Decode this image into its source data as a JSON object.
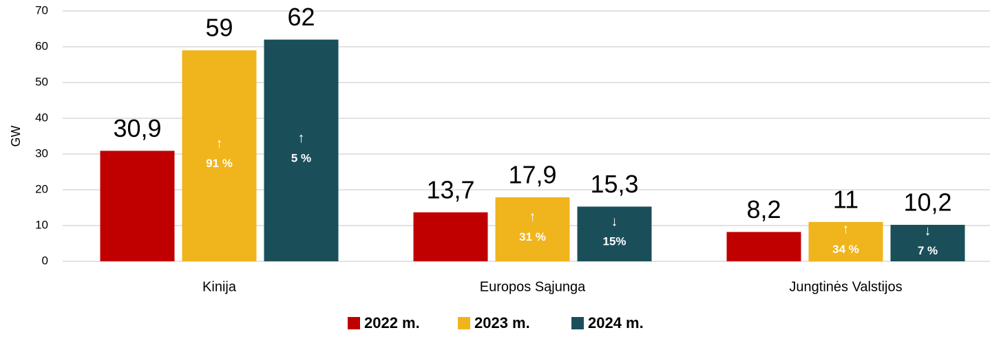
{
  "chart_data": {
    "type": "bar",
    "y_label": "GW",
    "categories": [
      "Kinija",
      "Europos Sąjunga",
      "Jungtinės Valstijos"
    ],
    "series": [
      {
        "name": "2022 m.",
        "color": "#c00000",
        "values": [
          30.9,
          13.7,
          8.2
        ],
        "value_labels": [
          "30,9",
          "13,7",
          "8,2"
        ]
      },
      {
        "name": "2023 m.",
        "color": "#f0b41c",
        "values": [
          59,
          17.9,
          11
        ],
        "value_labels": [
          "59",
          "17,9",
          "11"
        ],
        "change_arrows": [
          "↑",
          "↑",
          "↑"
        ],
        "change_labels": [
          "91 %",
          "31 %",
          "34 %"
        ]
      },
      {
        "name": "2024 m.",
        "color": "#1a4f5a",
        "values": [
          62,
          15.3,
          10.2
        ],
        "value_labels": [
          "62",
          "15,3",
          "10,2"
        ],
        "change_arrows": [
          "↑",
          "↓",
          "↓"
        ],
        "change_labels": [
          "5 %",
          "15%",
          "7 %"
        ]
      }
    ],
    "ylim": [
      0,
      70
    ],
    "yticks": [
      0,
      10,
      20,
      30,
      40,
      50,
      60,
      70
    ],
    "grid": true,
    "legend": "bottom"
  }
}
